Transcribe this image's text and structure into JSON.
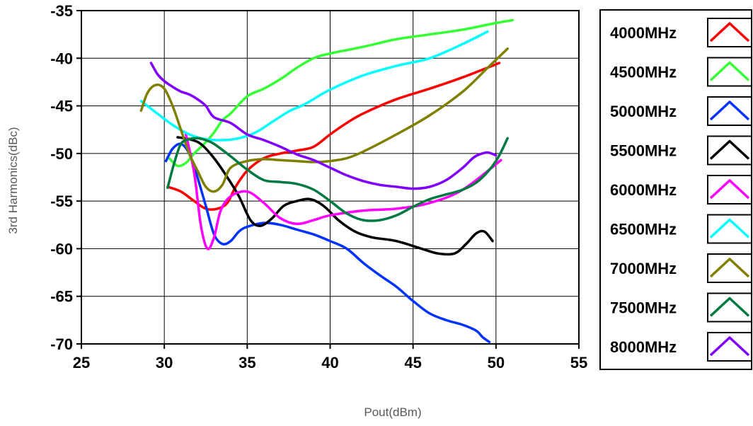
{
  "chart_data": {
    "type": "line",
    "title": "",
    "xlabel": "Pout(dBm)",
    "ylabel": "3rd Harmonics(dBc)",
    "xlim": [
      25,
      55
    ],
    "ylim": [
      -70,
      -35
    ],
    "x_ticks": [
      25,
      30,
      35,
      40,
      45,
      50,
      55
    ],
    "y_ticks": [
      -35,
      -40,
      -45,
      -50,
      -55,
      -60,
      -65,
      -70
    ],
    "x_tick_labels": [
      "25",
      "30",
      "35",
      "40",
      "45",
      "50",
      "55"
    ],
    "y_tick_labels": [
      "-35",
      "-40",
      "-45",
      "-50",
      "-55",
      "-60",
      "-65",
      "-70"
    ],
    "grid": true,
    "legend_position": "right",
    "series": [
      {
        "name": "4000MHz",
        "color": "#ff0000",
        "x": [
          30.2,
          31,
          31.8,
          32.5,
          33.2,
          33.8,
          34.3,
          35,
          36,
          37,
          38,
          39,
          40,
          41,
          42,
          44,
          46,
          48,
          50.2
        ],
        "y": [
          -53.5,
          -54,
          -55,
          -55.8,
          -55.8,
          -55.2,
          -53.5,
          -51.8,
          -50.5,
          -50,
          -49.7,
          -49.3,
          -48,
          -46.8,
          -45.8,
          -44.3,
          -43.2,
          -42,
          -40.5
        ]
      },
      {
        "name": "4500MHz",
        "color": "#33ff33",
        "x": [
          30.3,
          30.8,
          31.3,
          31.8,
          32.4,
          33,
          33.5,
          34,
          35,
          36,
          37,
          38,
          39,
          40,
          42,
          44,
          46,
          48,
          50,
          51
        ],
        "y": [
          -50.5,
          -51.3,
          -51,
          -50,
          -49,
          -47.8,
          -46.5,
          -45.8,
          -44,
          -43.2,
          -42.2,
          -41,
          -40,
          -39.5,
          -38.8,
          -38,
          -37.5,
          -37,
          -36.3,
          -36
        ]
      },
      {
        "name": "5000MHz",
        "color": "#0033ff",
        "x": [
          30.1,
          30.5,
          31,
          31.5,
          32,
          32.5,
          33,
          33.5,
          34,
          34.5,
          35,
          36,
          37,
          38,
          39,
          40,
          41,
          42,
          43,
          44,
          45,
          46,
          47,
          48,
          48.8,
          49.2,
          49.6
        ],
        "y": [
          -50.8,
          -49.5,
          -49,
          -50,
          -52.5,
          -55.5,
          -58.5,
          -59.5,
          -59.2,
          -58.2,
          -57.7,
          -57.3,
          -57.5,
          -58,
          -58.5,
          -59.2,
          -60,
          -61.5,
          -62.8,
          -64,
          -65.5,
          -66.8,
          -67.5,
          -68,
          -68.6,
          -69.3,
          -69.8
        ]
      },
      {
        "name": "5500MHz",
        "color": "#000000",
        "x": [
          30.8,
          31.5,
          32.2,
          33,
          33.8,
          34.5,
          35.2,
          35.8,
          36.5,
          37.2,
          38,
          38.8,
          39.6,
          40.5,
          41.5,
          42.5,
          44,
          45.5,
          46.5,
          47.5,
          48.2,
          48.8,
          49.3,
          49.8
        ],
        "y": [
          -48.3,
          -48.5,
          -49,
          -50.5,
          -52.5,
          -54.5,
          -57,
          -57.6,
          -56.8,
          -55.5,
          -55,
          -54.8,
          -55.5,
          -57,
          -58.2,
          -58.8,
          -59.2,
          -60,
          -60.5,
          -60.5,
          -59.5,
          -58.4,
          -58.2,
          -59.2
        ]
      },
      {
        "name": "6000MHz",
        "color": "#ff00ff",
        "x": [
          31.3,
          31.8,
          32.2,
          32.6,
          33,
          33.4,
          34,
          35,
          36,
          37,
          38,
          39,
          40,
          42,
          44,
          46,
          48,
          50.3
        ],
        "y": [
          -48,
          -52,
          -57.5,
          -60,
          -58.8,
          -56,
          -54.5,
          -54,
          -55.2,
          -56.8,
          -57.4,
          -57,
          -56.5,
          -56,
          -55.8,
          -55.2,
          -53.8,
          -50.7
        ]
      },
      {
        "name": "6500MHz",
        "color": "#00ffff",
        "x": [
          28.6,
          29.5,
          30.5,
          31.5,
          32.5,
          33.5,
          34.5,
          35.5,
          36.5,
          37.5,
          38.5,
          40,
          42,
          44,
          46,
          48,
          49.5
        ],
        "y": [
          -44.5,
          -45.7,
          -47,
          -48,
          -48.5,
          -48.6,
          -48.4,
          -47.8,
          -46.7,
          -45.6,
          -44.8,
          -43.3,
          -41.8,
          -40.8,
          -40,
          -38.5,
          -37.2
        ]
      },
      {
        "name": "7000MHz",
        "color": "#808000",
        "x": [
          28.6,
          29,
          29.5,
          30,
          30.5,
          31,
          31.5,
          32,
          32.5,
          33,
          33.5,
          34,
          35,
          36,
          37,
          38,
          39,
          40,
          41,
          42,
          44,
          46,
          48,
          49.5,
          50.7
        ],
        "y": [
          -45.5,
          -43.6,
          -42.8,
          -43.2,
          -45,
          -47.5,
          -50,
          -51.8,
          -53.5,
          -54,
          -53.3,
          -51.5,
          -50.8,
          -50.6,
          -50.7,
          -50.8,
          -50.9,
          -50.8,
          -50.5,
          -49.8,
          -48,
          -46,
          -43.5,
          -41,
          -39
        ]
      },
      {
        "name": "7500MHz",
        "color": "#007a40",
        "x": [
          30.2,
          30.6,
          31,
          31.5,
          32,
          32.5,
          33,
          34,
          35,
          36,
          37,
          38,
          39,
          40,
          41,
          42,
          43,
          44,
          45,
          46,
          47,
          48,
          49,
          50,
          50.7
        ],
        "y": [
          -53.6,
          -51,
          -49,
          -48.5,
          -48.4,
          -48.6,
          -49,
          -50.3,
          -51.7,
          -52.8,
          -53,
          -53.2,
          -53.8,
          -55,
          -56.3,
          -57,
          -57,
          -56.5,
          -55.6,
          -54.8,
          -54.3,
          -53.8,
          -52.8,
          -50.8,
          -48.4
        ]
      },
      {
        "name": "8000MHz",
        "color": "#8000ff",
        "x": [
          29.2,
          29.6,
          30,
          30.5,
          31,
          31.5,
          32,
          32.5,
          33,
          34,
          35,
          36,
          37,
          38,
          39,
          40,
          41,
          42,
          43,
          44,
          45,
          46,
          47,
          48,
          48.6,
          49,
          49.5,
          50
        ],
        "y": [
          -40.5,
          -41.7,
          -42.4,
          -43,
          -43.5,
          -43.8,
          -44.3,
          -45,
          -46.2,
          -46.8,
          -48,
          -48.6,
          -49.3,
          -50.1,
          -50.7,
          -51.5,
          -52.3,
          -52.9,
          -53.3,
          -53.5,
          -53.7,
          -53.5,
          -52.8,
          -51.5,
          -50.5,
          -50.1,
          -49.9,
          -50.2
        ]
      }
    ]
  }
}
